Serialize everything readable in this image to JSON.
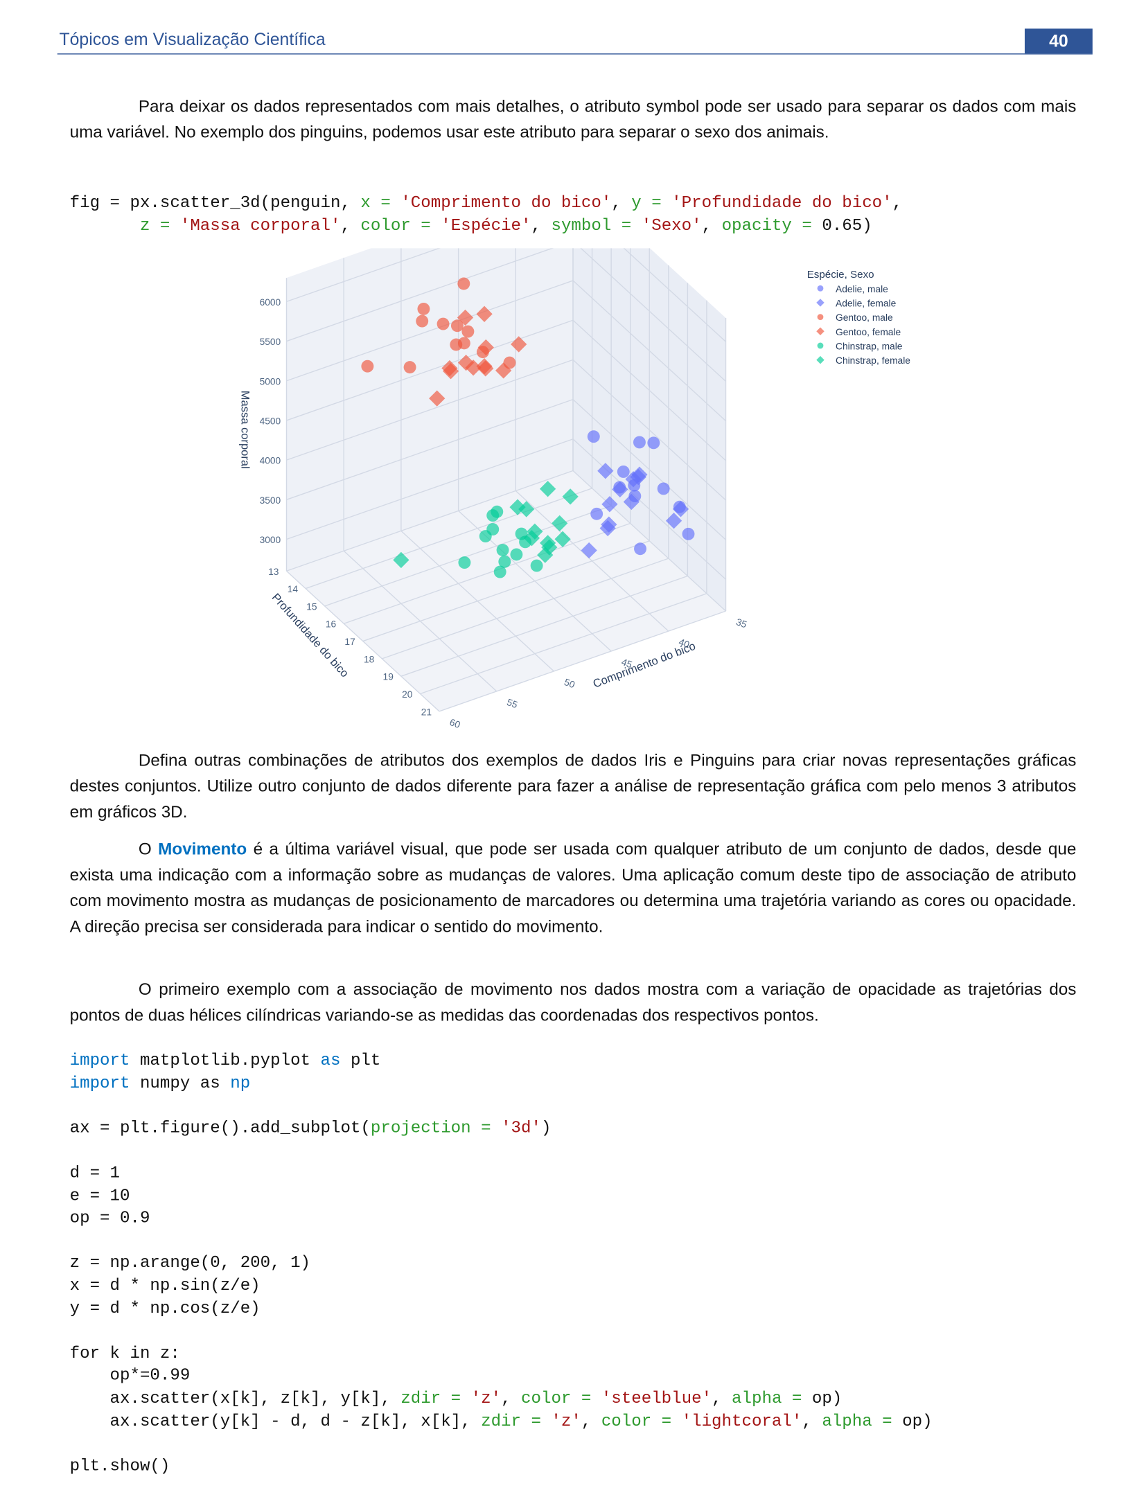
{
  "header": {
    "title": "Tópicos em Visualização Científica",
    "page": "40"
  },
  "paragraph1": "Para deixar os dados representados com mais detalhes, o atributo symbol pode ser usado para separar os dados com mais uma variável. No exemplo dos pinguins, podemos usar este atributo para separar o sexo dos animais.",
  "code1": {
    "lines": [
      [
        {
          "text": "fig = px.scatter_3d(penguin, "
        },
        {
          "text": "x = ",
          "color": "#2e9a2e"
        },
        {
          "text": "'Comprimento do bico'",
          "color": "#a31515"
        },
        {
          "text": ", "
        },
        {
          "text": "y = ",
          "color": "#2e9a2e"
        },
        {
          "text": "'Profundidade do bico'",
          "color": "#a31515"
        },
        {
          "text": ","
        }
      ],
      [
        {
          "text": "       "
        },
        {
          "text": "z = ",
          "color": "#2e9a2e"
        },
        {
          "text": "'Massa corporal'",
          "color": "#a31515"
        },
        {
          "text": ", "
        },
        {
          "text": "color = ",
          "color": "#2e9a2e"
        },
        {
          "text": "'Espécie'",
          "color": "#a31515"
        },
        {
          "text": ", "
        },
        {
          "text": "symbol = ",
          "color": "#2e9a2e"
        },
        {
          "text": "'Sexo'",
          "color": "#a31515"
        },
        {
          "text": ", "
        },
        {
          "text": "opacity = ",
          "color": "#2e9a2e"
        },
        {
          "text": "0.65)"
        }
      ]
    ]
  },
  "chart_data": {
    "type": "scatter3d",
    "legend_title": "Espécie, Sexo",
    "xlabel": "Comprimento do bico",
    "ylabel": "Profundidade do bico",
    "zlabel": "Massa corporal",
    "xlim": [
      35,
      60
    ],
    "ylim": [
      13,
      21
    ],
    "zlim": [
      2600,
      6300
    ],
    "xticks": [
      35,
      40,
      45,
      50,
      55,
      60
    ],
    "yticks": [
      13,
      14,
      15,
      16,
      17,
      18,
      19,
      20,
      21
    ],
    "zticks": [
      3000,
      3500,
      4000,
      4500,
      5000,
      5500,
      6000
    ],
    "opacity": 0.65,
    "series": [
      {
        "name": "Adelie, male",
        "color": "#636efa",
        "symbol": "circle",
        "x": [
          39.1,
          37.8,
          41.1,
          38.6,
          42.5,
          40.6,
          39.2,
          43.2,
          41.3,
          36.2,
          44.1,
          37.6
        ],
        "y": [
          18.7,
          18.9,
          19.1,
          21.2,
          20.7,
          19,
          21.1,
          19,
          20.3,
          17.2,
          19.7,
          19.3
        ],
        "z": [
          3750,
          4400,
          4050,
          3800,
          4500,
          4200,
          4150,
          4775,
          3550,
          3950,
          4000,
          3900
        ]
      },
      {
        "name": "Adelie, female",
        "color": "#636efa",
        "symbol": "diamond",
        "x": [
          39.5,
          40.3,
          36.7,
          38.9,
          35.9,
          34.1,
          37.3,
          36.4,
          38.8,
          39.7,
          35.7,
          41.1
        ],
        "y": [
          17.4,
          18,
          19.3,
          17.8,
          16.6,
          18.1,
          17.8,
          17,
          17.2,
          17.7,
          16.9,
          17.5
        ],
        "z": [
          3800,
          3250,
          3450,
          3625,
          3050,
          3200,
          3700,
          3450,
          3300,
          3200,
          3450,
          2900
        ]
      },
      {
        "name": "Gentoo, male",
        "color": "#ef553b",
        "symbol": "circle",
        "x": [
          50,
          50,
          47.6,
          46.7,
          48.7,
          50.2,
          49.5,
          52.5,
          55.9,
          59.6,
          49.2,
          45.2
        ],
        "y": [
          16.3,
          15.2,
          14.5,
          15.3,
          15.1,
          14.3,
          16.2,
          15.6,
          17,
          17,
          15.8,
          15.8
        ],
        "z": [
          5700,
          5700,
          5400,
          5200,
          5350,
          5700,
          5800,
          5950,
          5850,
          6050,
          6300,
          5100
        ]
      },
      {
        "name": "Gentoo, female",
        "color": "#ef553b",
        "symbol": "diamond",
        "x": [
          46.1,
          48.7,
          46.5,
          45.4,
          43.3,
          40.9,
          45.5,
          42.9,
          46.2,
          45.1,
          44.9,
          43.4
        ],
        "y": [
          13.2,
          14.1,
          13.5,
          14.6,
          13.4,
          13.7,
          13.7,
          13.1,
          14.5,
          14.5,
          13.3,
          14.4
        ],
        "z": [
          4500,
          4450,
          4550,
          4800,
          4400,
          4650,
          4650,
          5000,
          4800,
          5000,
          5100,
          4600
        ]
      },
      {
        "name": "Chinstrap, male",
        "color": "#00cc96",
        "symbol": "circle",
        "x": [
          50,
          51.3,
          52.7,
          51.3,
          52,
          50.5,
          50.8,
          55.8,
          49,
          53.5,
          50.6,
          52.8
        ],
        "y": [
          19.5,
          19.2,
          19.8,
          18.2,
          19,
          19.6,
          18.5,
          19.8,
          19.5,
          19.9,
          19.4,
          20
        ],
        "z": [
          3900,
          3650,
          3725,
          3750,
          4050,
          4050,
          4100,
          4000,
          3550,
          4500,
          3750,
          4050
        ]
      },
      {
        "name": "Chinstrap, female",
        "color": "#00cc96",
        "symbol": "diamond",
        "x": [
          46.5,
          45.4,
          45.2,
          46.1,
          46,
          46.6,
          47,
          45.9,
          58,
          46.4,
          42.4,
          43.2
        ],
        "y": [
          17.9,
          18.7,
          17.8,
          18.2,
          18.9,
          17.8,
          17.3,
          17.1,
          17.8,
          18.6,
          17.3,
          16.6
        ],
        "z": [
          3500,
          3525,
          3950,
          3250,
          3800,
          3400,
          3700,
          3575,
          3700,
          3450,
          3600,
          2900
        ]
      }
    ]
  },
  "paragraph2": "Defina outras combinações de atributos dos exemplos de dados Iris e Pinguins para criar novas representações gráficas destes conjuntos. Utilize outro conjunto de dados diferente para fazer a análise de representação gráfica com pelo menos 3 atributos em gráficos 3D.",
  "paragraph3": {
    "before": "O ",
    "highlight": "Movimento",
    "after": " é a última variável visual, que pode ser usada com qualquer atributo de um conjunto de dados, desde que exista uma indicação com a informação sobre as mudanças de valores. Uma aplicação comum deste tipo de associação de atributo com movimento mostra as mudanças de posicionamento de marcadores ou determina uma trajetória variando as cores ou opacidade. A direção precisa ser considerada para indicar o sentido do movimento."
  },
  "paragraph4": "O primeiro exemplo com a associação de movimento nos dados mostra com a variação de opacidade as trajetórias dos pontos de duas hélices cilíndricas variando-se as medidas das coordenadas dos respectivos pontos.",
  "code2": {
    "lines": [
      [
        {
          "text": "import",
          "color": "#0070c0"
        },
        {
          "text": " matplotlib.pyplot "
        },
        {
          "text": "as",
          "color": "#0070c0"
        },
        {
          "text": " plt"
        }
      ],
      [
        {
          "text": "import",
          "color": "#0070c0"
        },
        {
          "text": " numpy as "
        },
        {
          "text": "np",
          "color": "#0070c0"
        }
      ],
      [],
      [
        {
          "text": "ax = plt.figure().add_subplot("
        },
        {
          "text": "projection = ",
          "color": "#2e9a2e"
        },
        {
          "text": "'3d'",
          "color": "#a31515"
        },
        {
          "text": ")"
        }
      ],
      [],
      [
        {
          "text": "d = 1"
        }
      ],
      [
        {
          "text": "e = 10"
        }
      ],
      [
        {
          "text": "op = 0.9"
        }
      ],
      [],
      [
        {
          "text": "z = np.arange(0, 200, 1)"
        }
      ],
      [
        {
          "text": "x = d * np.sin(z/e)"
        }
      ],
      [
        {
          "text": "y = d * np.cos(z/e)"
        }
      ],
      [],
      [
        {
          "text": "for k in z:"
        }
      ],
      [
        {
          "text": "    op*=0.99"
        }
      ],
      [
        {
          "text": "    ax.scatter(x[k], z[k], y[k], "
        },
        {
          "text": "zdir = ",
          "color": "#2e9a2e"
        },
        {
          "text": "'z'",
          "color": "#a31515"
        },
        {
          "text": ", "
        },
        {
          "text": "color = ",
          "color": "#2e9a2e"
        },
        {
          "text": "'steelblue'",
          "color": "#a31515"
        },
        {
          "text": ", "
        },
        {
          "text": "alpha = ",
          "color": "#2e9a2e"
        },
        {
          "text": "op)"
        }
      ],
      [
        {
          "text": "    ax.scatter(y[k] - d, d - z[k], x[k], "
        },
        {
          "text": "zdir = ",
          "color": "#2e9a2e"
        },
        {
          "text": "'z'",
          "color": "#a31515"
        },
        {
          "text": ", "
        },
        {
          "text": "color = ",
          "color": "#2e9a2e"
        },
        {
          "text": "'lightcoral'",
          "color": "#a31515"
        },
        {
          "text": ", "
        },
        {
          "text": "alpha = ",
          "color": "#2e9a2e"
        },
        {
          "text": "op)"
        }
      ],
      [],
      [
        {
          "text": "plt.show()"
        }
      ]
    ]
  }
}
